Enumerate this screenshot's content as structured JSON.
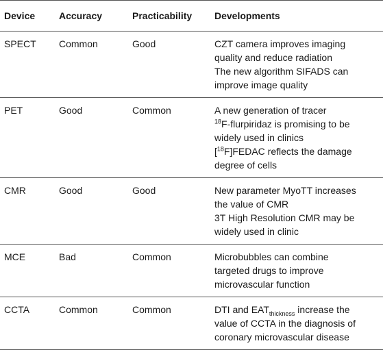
{
  "headers": [
    "Device",
    "Accuracy",
    "Practicability",
    "Developments"
  ],
  "rows": [
    {
      "device": "SPECT",
      "accuracy": "Common",
      "practicability": "Good",
      "developments": [
        [
          {
            "t": "CZT camera improves imaging"
          }
        ],
        [
          {
            "t": "quality and reduce radiation"
          }
        ],
        [
          {
            "t": "The new algorithm SIFADS can"
          }
        ],
        [
          {
            "t": "improve image quality"
          }
        ]
      ]
    },
    {
      "device": "PET",
      "accuracy": "Good",
      "practicability": "Common",
      "developments": [
        [
          {
            "t": "A new generation of tracer"
          }
        ],
        [
          {
            "t": "18",
            "s": "sup"
          },
          {
            "t": "F-flurpiridaz is promising to be"
          }
        ],
        [
          {
            "t": "widely used in clinics"
          }
        ],
        [
          {
            "t": "["
          },
          {
            "t": "18",
            "s": "sup"
          },
          {
            "t": "F]FEDAC reflects the damage"
          }
        ],
        [
          {
            "t": "degree of cells"
          }
        ]
      ]
    },
    {
      "device": "CMR",
      "accuracy": "Good",
      "practicability": "Good",
      "developments": [
        [
          {
            "t": "New parameter MyoTT increases"
          }
        ],
        [
          {
            "t": "the value of CMR"
          }
        ],
        [
          {
            "t": "3T High Resolution CMR may be"
          }
        ],
        [
          {
            "t": "widely used in clinic"
          }
        ]
      ]
    },
    {
      "device": "MCE",
      "accuracy": "Bad",
      "practicability": "Common",
      "developments": [
        [
          {
            "t": "Microbubbles can combine"
          }
        ],
        [
          {
            "t": "targeted drugs to improve"
          }
        ],
        [
          {
            "t": "microvascular function"
          }
        ]
      ]
    },
    {
      "device": "CCTA",
      "accuracy": "Common",
      "practicability": "Common",
      "developments": [
        [
          {
            "t": "DTI and EAT"
          },
          {
            "t": "thickness",
            "s": "sub"
          },
          {
            "t": " increase the"
          }
        ],
        [
          {
            "t": "value of CCTA in the diagnosis of"
          }
        ],
        [
          {
            "t": "coronary microvascular disease"
          }
        ]
      ]
    }
  ]
}
